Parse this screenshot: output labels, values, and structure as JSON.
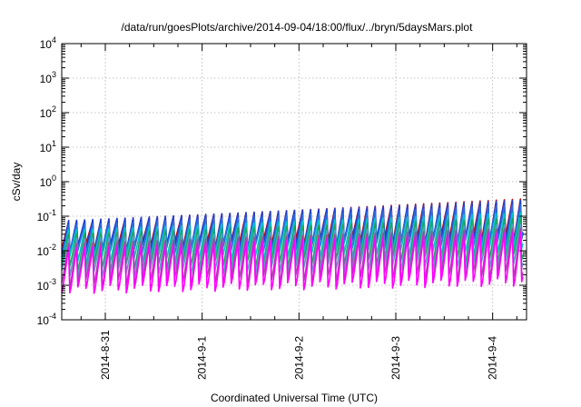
{
  "chart_data": {
    "type": "line",
    "title": "/data/run/goesPlots/archive/2014-09-04/18:00/flux/../bryn/5daysMars.plot",
    "xlabel": "Coordinated Universal Time (UTC)",
    "ylabel": "cSv/day",
    "yscale": "log",
    "ylim": [
      0.0001,
      10000
    ],
    "xlim_days": [
      -0.45,
      4.35
    ],
    "x_tick_labels": [
      "2014-8-31",
      "2014-9-1",
      "2014-9-2",
      "2014-9-3",
      "2014-9-4"
    ],
    "y_tick_labels": [
      {
        "base": "10",
        "exp": "-4"
      },
      {
        "base": "10",
        "exp": "-3"
      },
      {
        "base": "10",
        "exp": "-2"
      },
      {
        "base": "10",
        "exp": "-1"
      },
      {
        "base": "10",
        "exp": "0"
      },
      {
        "base": "10",
        "exp": "1"
      },
      {
        "base": "10",
        "exp": "2"
      },
      {
        "base": "10",
        "exp": "3"
      },
      {
        "base": "10",
        "exp": "4"
      }
    ],
    "grid": true,
    "pattern": "sawtooth, about 12 cycles per day, rising from minimum to peak then dropping sharply",
    "series": [
      {
        "color": "#d40000",
        "peak_start": 0.07,
        "peak_end": 0.33,
        "min_start": 0.011,
        "min_end": 0.025
      },
      {
        "color": "#1f3fcf",
        "peak_start": 0.075,
        "peak_end": 0.3,
        "min_start": 0.01,
        "min_end": 0.022
      },
      {
        "color": "#2a6fe0",
        "peak_start": 0.055,
        "peak_end": 0.22,
        "min_start": 0.008,
        "min_end": 0.017
      },
      {
        "color": "#00c7c7",
        "peak_start": 0.04,
        "peak_end": 0.13,
        "min_start": 0.005,
        "min_end": 0.01
      },
      {
        "color": "#19a85a",
        "peak_start": 0.03,
        "peak_end": 0.09,
        "min_start": 0.003,
        "min_end": 0.006
      },
      {
        "color": "#5aa0c8",
        "peak_start": 0.022,
        "peak_end": 0.06,
        "min_start": 0.002,
        "min_end": 0.004
      },
      {
        "color": "#a04aa0",
        "peak_start": 0.016,
        "peak_end": 0.045,
        "min_start": 0.0011,
        "min_end": 0.002
      },
      {
        "color": "#ff00ff",
        "peak_start": 0.012,
        "peak_end": 0.035,
        "min_start": 0.0007,
        "min_end": 0.0012
      }
    ]
  }
}
